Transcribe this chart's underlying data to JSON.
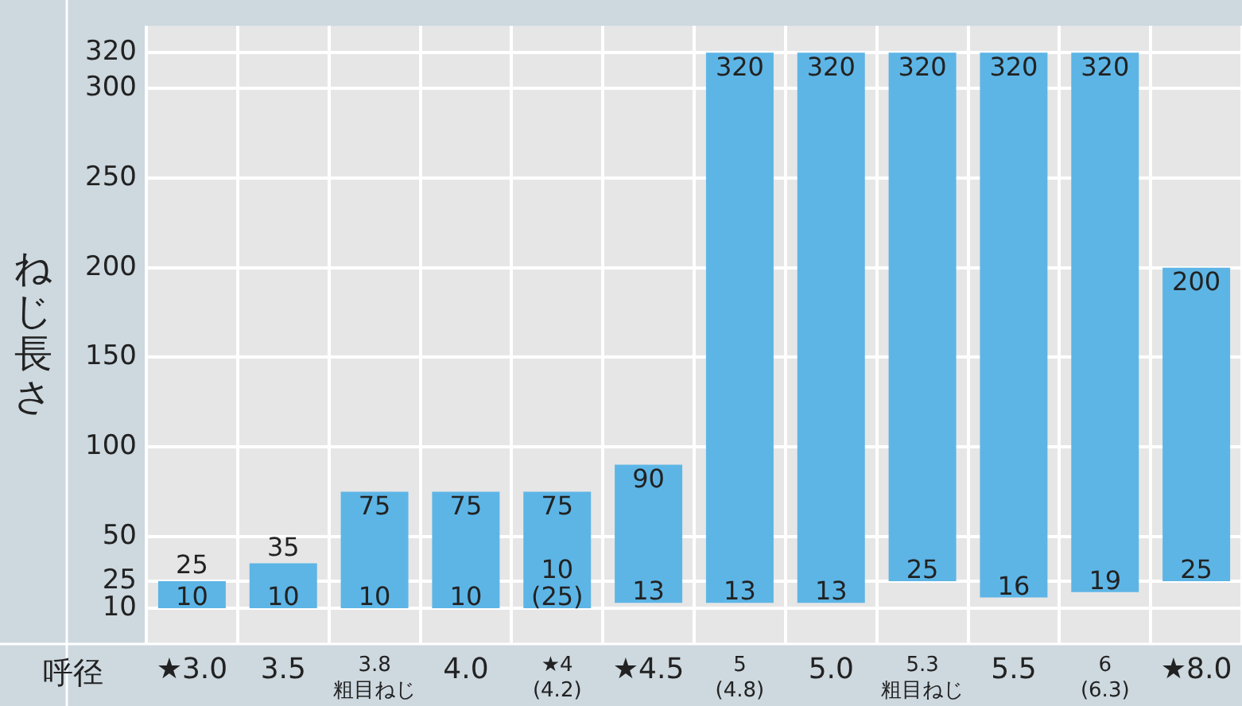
{
  "chart_data": {
    "type": "bar",
    "xlabel": "呼径",
    "ylabel": "ねじ長さ",
    "categories": [
      "★3.0",
      "3.5",
      "3.8\n粗目ねじ",
      "4.0",
      "★4\n(4.2)",
      "★4.5",
      "5\n(4.8)",
      "5.0",
      "5.3\n粗目ねじ",
      "5.5",
      "6\n(6.3)",
      "★8.0"
    ],
    "values": [
      15,
      25,
      65,
      65,
      65,
      77,
      307,
      307,
      295,
      304,
      301,
      175
    ],
    "base": [
      10,
      10,
      10,
      10,
      10,
      13,
      13,
      13,
      25,
      16,
      19,
      25
    ],
    "color": "#5db5e6",
    "ylim": [
      -10,
      335
    ],
    "yticks": [
      10,
      25,
      50,
      100,
      150,
      200,
      250,
      300,
      320
    ],
    "grid": true,
    "legend": false,
    "annotations": [
      {
        "text": "25",
        "x": "★3.0",
        "y": 25
      },
      {
        "text": "10",
        "x": "★3.0",
        "y": 10
      },
      {
        "text": "35",
        "x": "3.5",
        "y": 35
      },
      {
        "text": "10",
        "x": "3.5",
        "y": 10
      },
      {
        "text": "75",
        "x": "3.8\n粗目ねじ",
        "y": 75
      },
      {
        "text": "10",
        "x": "3.8\n粗目ねじ",
        "y": 10
      },
      {
        "text": "75",
        "x": "4.0",
        "y": 75
      },
      {
        "text": "10",
        "x": "4.0",
        "y": 10
      },
      {
        "text": "75",
        "x": "★4\n(4.2)",
        "y": 75
      },
      {
        "text": "10\n(25)",
        "x": "★4\n(4.2)",
        "y": 10
      },
      {
        "text": "90",
        "x": "★4.5",
        "y": 90
      },
      {
        "text": "13",
        "x": "★4.5",
        "y": 13
      },
      {
        "text": "320",
        "x": "5\n(4.8)",
        "y": 320
      },
      {
        "text": "13",
        "x": "5\n(4.8)",
        "y": 13
      },
      {
        "text": "320",
        "x": "5.0",
        "y": 320
      },
      {
        "text": "13",
        "x": "5.0",
        "y": 13
      },
      {
        "text": "320",
        "x": "5.3\n粗目ねじ",
        "y": 320
      },
      {
        "text": "25",
        "x": "5.3\n粗目ねじ",
        "y": 25
      },
      {
        "text": "320",
        "x": "5.5",
        "y": 320
      },
      {
        "text": "16",
        "x": "5.5",
        "y": 16
      },
      {
        "text": "320",
        "x": "6\n(6.3)",
        "y": 320
      },
      {
        "text": "19",
        "x": "6\n(6.3)",
        "y": 19
      },
      {
        "text": "200",
        "x": "★8.0",
        "y": 200
      },
      {
        "text": "25",
        "x": "★8.0",
        "y": 25
      }
    ]
  }
}
